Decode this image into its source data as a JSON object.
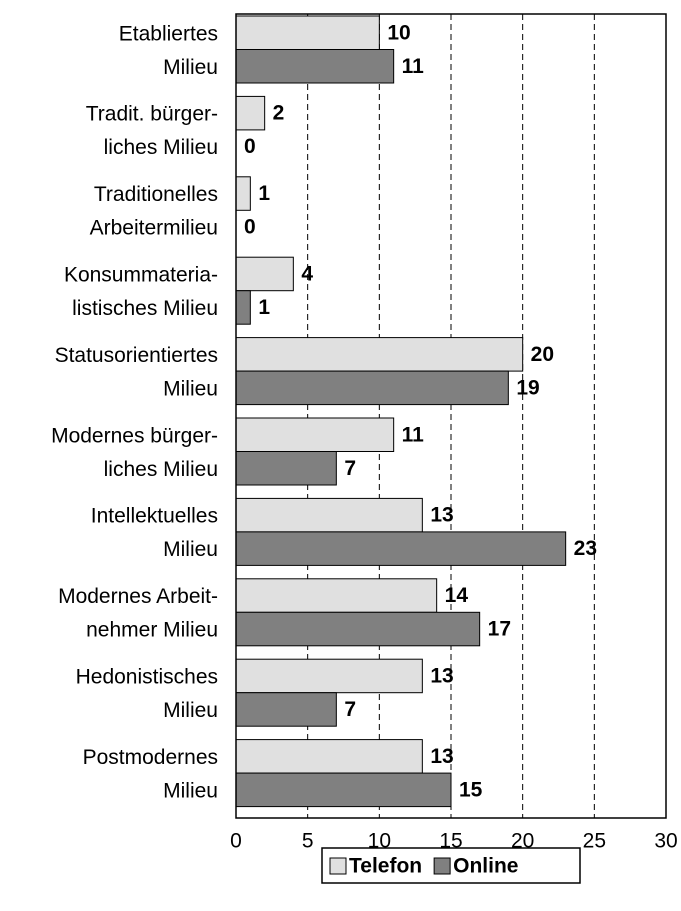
{
  "chart_data": {
    "type": "bar",
    "orientation": "horizontal",
    "categories": [
      [
        "Etabliertes",
        "Milieu"
      ],
      [
        "Tradit. bürger-",
        "liches Milieu"
      ],
      [
        "Traditionelles",
        "Arbeitermilieu"
      ],
      [
        "Konsummateria-",
        "listisches Milieu"
      ],
      [
        "Statusorientiertes",
        "Milieu"
      ],
      [
        "Modernes bürger-",
        "liches Milieu"
      ],
      [
        "Intellektuelles",
        "Milieu"
      ],
      [
        "Modernes Arbeit-",
        "nehmer Milieu"
      ],
      [
        "Hedonistisches",
        "Milieu"
      ],
      [
        "Postmodernes",
        "Milieu"
      ]
    ],
    "series": [
      {
        "name": "Telefon",
        "color": "#e0e0e0",
        "values": [
          10,
          2,
          1,
          4,
          20,
          11,
          13,
          14,
          13,
          13
        ]
      },
      {
        "name": "Online",
        "color": "#808080",
        "values": [
          11,
          0,
          0,
          1,
          19,
          7,
          23,
          17,
          7,
          15
        ]
      }
    ],
    "xlim": [
      0,
      30
    ],
    "xticks": [
      0,
      5,
      10,
      15,
      20,
      25,
      30
    ],
    "grid": true,
    "legend": "bottom"
  }
}
